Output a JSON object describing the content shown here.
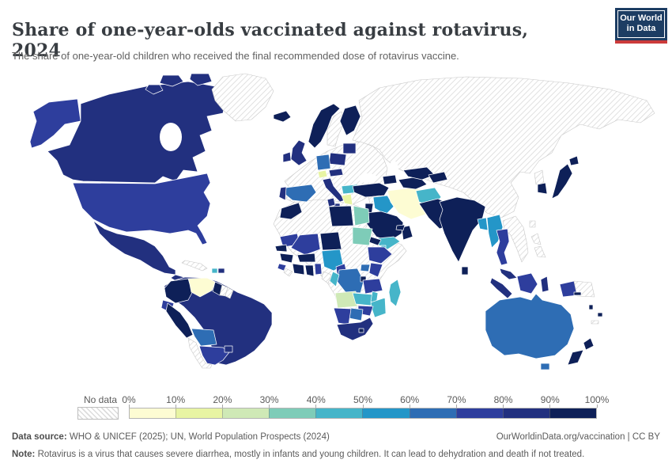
{
  "header": {
    "title": "Share of one-year-olds vaccinated against rotavirus, 2024",
    "subtitle": "The share of one-year-old children who received the final recommended dose of rotavirus vaccine.",
    "logo": {
      "line1": "Our World",
      "line2": "in Data",
      "bg_color": "#1d3d63",
      "accent_color": "#cc3b3b"
    }
  },
  "legend": {
    "no_data_label": "No data",
    "tick_labels": [
      "0%",
      "10%",
      "20%",
      "30%",
      "40%",
      "50%",
      "60%",
      "70%",
      "80%",
      "90%",
      "100%"
    ]
  },
  "footer": {
    "data_source_label": "Data source:",
    "data_source": " WHO & UNICEF (2025); UN, World Population Prospects (2024)",
    "link": "OurWorldinData.org/vaccination | CC BY",
    "note_label": "Note:",
    "note": " Rotavirus is a virus that causes severe diarrhea, mostly in infants and young children. It can lead to dehydration and death if not treated."
  },
  "chart_data": {
    "type": "choropleth",
    "title": "Share of one-year-olds vaccinated against rotavirus, 2024",
    "unit": "%",
    "value_range": [
      0,
      100
    ],
    "no_data_style": "gray-diagonal-hatch",
    "bins": [
      {
        "min": 0,
        "max": 10,
        "color": "#fdfcd3"
      },
      {
        "min": 10,
        "max": 20,
        "color": "#e8f4a3"
      },
      {
        "min": 20,
        "max": 30,
        "color": "#cfe9b6"
      },
      {
        "min": 30,
        "max": 40,
        "color": "#7eccb8"
      },
      {
        "min": 40,
        "max": 50,
        "color": "#46b5c9"
      },
      {
        "min": 50,
        "max": 60,
        "color": "#2496c8"
      },
      {
        "min": 60,
        "max": 70,
        "color": "#2e6db4"
      },
      {
        "min": 70,
        "max": 80,
        "color": "#2e3e9d"
      },
      {
        "min": 80,
        "max": 90,
        "color": "#22307f"
      },
      {
        "min": 90,
        "max": 100,
        "color": "#0e2058"
      }
    ],
    "countries": [
      {
        "id": "canada",
        "name": "Canada",
        "value": 85
      },
      {
        "id": "arctic-canada",
        "name": "Canadian Arctic islands",
        "value": 85
      },
      {
        "id": "usa",
        "name": "United States",
        "value": 75
      },
      {
        "id": "alaska",
        "name": "United States (Alaska)",
        "value": 75
      },
      {
        "id": "greenland",
        "name": "Greenland",
        "value": null
      },
      {
        "id": "mexico",
        "name": "Mexico",
        "value": 85
      },
      {
        "id": "central-america",
        "name": "Central America",
        "value": 85
      },
      {
        "id": "cuba",
        "name": "Cuba",
        "value": null
      },
      {
        "id": "haiti",
        "name": "Haiti",
        "value": 45
      },
      {
        "id": "dominican-republic",
        "name": "Dominican Republic",
        "value": 85
      },
      {
        "id": "colombia",
        "name": "Colombia",
        "value": 95
      },
      {
        "id": "venezuela",
        "name": "Venezuela",
        "value": 5
      },
      {
        "id": "guyana",
        "name": "Guyana",
        "value": 95
      },
      {
        "id": "suriname",
        "name": "Suriname",
        "value": null
      },
      {
        "id": "french-guiana",
        "name": "French Guiana",
        "value": null
      },
      {
        "id": "ecuador",
        "name": "Ecuador",
        "value": 75
      },
      {
        "id": "peru",
        "name": "Peru",
        "value": 95
      },
      {
        "id": "brazil",
        "name": "Brazil",
        "value": 85
      },
      {
        "id": "bolivia",
        "name": "Bolivia",
        "value": 65
      },
      {
        "id": "chile",
        "name": "Chile",
        "value": null
      },
      {
        "id": "argentina",
        "name": "Argentina",
        "value": 75
      },
      {
        "id": "uruguay",
        "name": "Uruguay",
        "value": 85
      },
      {
        "id": "iceland",
        "name": "Iceland",
        "value": 95
      },
      {
        "id": "norway",
        "name": "Norway",
        "value": 95
      },
      {
        "id": "sweden",
        "name": "Sweden",
        "value": null
      },
      {
        "id": "finland",
        "name": "Finland",
        "value": 95
      },
      {
        "id": "uk",
        "name": "United Kingdom",
        "value": 85
      },
      {
        "id": "ireland",
        "name": "Ireland",
        "value": 85
      },
      {
        "id": "baltics",
        "name": "Estonia, Latvia, Lithuania",
        "value": 85
      },
      {
        "id": "poland",
        "name": "Poland",
        "value": 85
      },
      {
        "id": "germany",
        "name": "Germany",
        "value": 65
      },
      {
        "id": "switzerland",
        "name": "Switzerland",
        "value": 15
      },
      {
        "id": "austria",
        "name": "Austria",
        "value": 85
      },
      {
        "id": "italy",
        "name": "Italy",
        "value": 85
      },
      {
        "id": "spain",
        "name": "Spain",
        "value": 65
      },
      {
        "id": "portugal",
        "name": "Portugal",
        "value": 85
      },
      {
        "id": "greece",
        "name": "Greece",
        "value": 15
      },
      {
        "id": "bulgaria",
        "name": "Bulgaria",
        "value": 45
      },
      {
        "id": "europe-nodata",
        "name": "France, Benelux, Balkans, Romania, Ukraine, Belarus",
        "value": null
      },
      {
        "id": "eurasia-nodata",
        "name": "Russia, Kazakhstan, Mongolia, China",
        "value": null
      },
      {
        "id": "turkey",
        "name": "Turkey",
        "value": 95
      },
      {
        "id": "caucasus",
        "name": "Armenia, Azerbaijan",
        "value": 95
      },
      {
        "id": "syria",
        "name": "Syria",
        "value": null
      },
      {
        "id": "israel-jordan",
        "name": "Israel, Jordan",
        "value": 95
      },
      {
        "id": "iraq",
        "name": "Iraq",
        "value": 55
      },
      {
        "id": "iran",
        "name": "Iran",
        "value": 5
      },
      {
        "id": "saudi-arabia",
        "name": "Saudi Arabia",
        "value": 95
      },
      {
        "id": "yemen",
        "name": "Yemen",
        "value": 45
      },
      {
        "id": "oman",
        "name": "Oman",
        "value": 95
      },
      {
        "id": "uae",
        "name": "United Arab Emirates",
        "value": 95
      },
      {
        "id": "turkmenistan",
        "name": "Turkmenistan",
        "value": 95
      },
      {
        "id": "uzbekistan",
        "name": "Uzbekistan",
        "value": 95
      },
      {
        "id": "kyrgyz-tajik",
        "name": "Kyrgyzstan, Tajikistan",
        "value": 95
      },
      {
        "id": "afghanistan",
        "name": "Afghanistan",
        "value": 45
      },
      {
        "id": "pakistan",
        "name": "Pakistan",
        "value": 95
      },
      {
        "id": "india",
        "name": "India",
        "value": 95
      },
      {
        "id": "bangladesh",
        "name": "Bangladesh",
        "value": 55
      },
      {
        "id": "sri-lanka",
        "name": "Sri Lanka",
        "value": 95
      },
      {
        "id": "myanmar",
        "name": "Myanmar",
        "value": 55
      },
      {
        "id": "thailand",
        "name": "Thailand",
        "value": 75
      },
      {
        "id": "se-asia-nodata",
        "name": "Vietnam, Laos, Cambodia",
        "value": null
      },
      {
        "id": "malaysia",
        "name": "Malaysia",
        "value": 85
      },
      {
        "id": "indonesia",
        "name": "Indonesia",
        "value": 85
      },
      {
        "id": "kalimantan",
        "name": "Indonesia (Kalimantan)",
        "value": 75
      },
      {
        "id": "papua-indonesia",
        "name": "Indonesia (Papua)",
        "value": 75
      },
      {
        "id": "papua-new-guinea",
        "name": "Papua New Guinea",
        "value": null
      },
      {
        "id": "philippines",
        "name": "Philippines",
        "value": null
      },
      {
        "id": "taiwan",
        "name": "Taiwan",
        "value": null
      },
      {
        "id": "north-korea",
        "name": "North Korea",
        "value": null
      },
      {
        "id": "south-korea",
        "name": "South Korea",
        "value": 95
      },
      {
        "id": "japan",
        "name": "Japan",
        "value": 95
      },
      {
        "id": "morocco",
        "name": "Morocco",
        "value": 95
      },
      {
        "id": "tunisia",
        "name": "Tunisia",
        "value": 85
      },
      {
        "id": "libya",
        "name": "Libya",
        "value": 95
      },
      {
        "id": "egypt",
        "name": "Egypt",
        "value": 35
      },
      {
        "id": "africa-nodata",
        "name": "Algeria, Chad, C.A.R., South Sudan, Somalia",
        "value": null
      },
      {
        "id": "mauritania",
        "name": "Mauritania",
        "value": 75
      },
      {
        "id": "mali",
        "name": "Mali",
        "value": 75
      },
      {
        "id": "senegal",
        "name": "Senegal",
        "value": 95
      },
      {
        "id": "guinea",
        "name": "Guinea",
        "value": 95
      },
      {
        "id": "sierra-leone",
        "name": "Sierra Leone",
        "value": 75
      },
      {
        "id": "liberia",
        "name": "Liberia",
        "value": null
      },
      {
        "id": "cote-divoire",
        "name": "Cote d'Ivoire",
        "value": 95
      },
      {
        "id": "ghana",
        "name": "Ghana",
        "value": 95
      },
      {
        "id": "togo-benin",
        "name": "Togo, Benin",
        "value": 75
      },
      {
        "id": "burkina-faso",
        "name": "Burkina Faso",
        "value": 95
      },
      {
        "id": "niger",
        "name": "Niger",
        "value": 95
      },
      {
        "id": "nigeria",
        "name": "Nigeria",
        "value": 55
      },
      {
        "id": "cameroon",
        "name": "Cameroon",
        "value": 75
      },
      {
        "id": "sudan",
        "name": "Sudan",
        "value": 35
      },
      {
        "id": "eritrea",
        "name": "Eritrea",
        "value": 95
      },
      {
        "id": "djibouti",
        "name": "Djibouti",
        "value": 45
      },
      {
        "id": "ethiopia",
        "name": "Ethiopia",
        "value": 75
      },
      {
        "id": "uganda",
        "name": "Uganda",
        "value": 65
      },
      {
        "id": "kenya",
        "name": "Kenya",
        "value": 75
      },
      {
        "id": "drc",
        "name": "Democratic Republic of Congo",
        "value": 65
      },
      {
        "id": "congo",
        "name": "Congo",
        "value": 45
      },
      {
        "id": "gabon",
        "name": "Gabon",
        "value": null
      },
      {
        "id": "rwanda-burundi",
        "name": "Rwanda, Burundi",
        "value": 95
      },
      {
        "id": "tanzania",
        "name": "Tanzania",
        "value": 75
      },
      {
        "id": "angola",
        "name": "Angola",
        "value": 25
      },
      {
        "id": "zambia",
        "name": "Zambia",
        "value": 45
      },
      {
        "id": "malawi",
        "name": "Malawi",
        "value": 45
      },
      {
        "id": "mozambique",
        "name": "Mozambique",
        "value": 45
      },
      {
        "id": "zimbabwe",
        "name": "Zimbabwe",
        "value": 75
      },
      {
        "id": "botswana",
        "name": "Botswana",
        "value": 65
      },
      {
        "id": "namibia",
        "name": "Namibia",
        "value": 75
      },
      {
        "id": "south-africa",
        "name": "South Africa",
        "value": 85
      },
      {
        "id": "lesotho",
        "name": "Lesotho",
        "value": 95
      },
      {
        "id": "madagascar",
        "name": "Madagascar",
        "value": 45
      },
      {
        "id": "australia",
        "name": "Australia",
        "value": 65
      },
      {
        "id": "tasmania",
        "name": "Australia (Tasmania)",
        "value": 65
      },
      {
        "id": "new-zealand",
        "name": "New Zealand",
        "value": 95
      },
      {
        "id": "fiji",
        "name": "Fiji",
        "value": 95
      },
      {
        "id": "vanuatu",
        "name": "Vanuatu",
        "value": 95
      },
      {
        "id": "solomon-islands",
        "name": "Solomon Islands",
        "value": 95
      },
      {
        "id": "new-caledonia",
        "name": "New Caledonia",
        "value": null
      }
    ]
  }
}
